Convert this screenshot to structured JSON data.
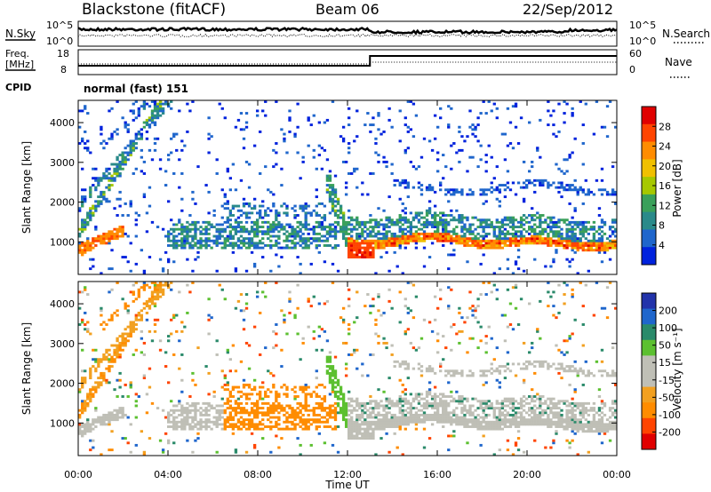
{
  "header": {
    "station": "Blackstone (fitACF)",
    "beam": "Beam 06",
    "date": "22/Sep/2012"
  },
  "summary_panel": {
    "nsky_label": "N.Sky",
    "nsearch_label": "N.Search",
    "freq_label_line1": "Freq.",
    "freq_label_line2": "[MHz]",
    "nave_label": "Nave",
    "cpid_label": "CPID",
    "noise_ticks_left": [
      "10^5",
      "10^0"
    ],
    "noise_ticks_right": [
      "10^5",
      "10^0"
    ],
    "freq_ticks": [
      "18",
      "8"
    ],
    "nave_ticks": [
      "60",
      "0"
    ],
    "cpid_text": "normal (fast) 151"
  },
  "colors": {
    "power_scale": [
      "#0022dd",
      "#1f66cc",
      "#2a8a8a",
      "#3aa05a",
      "#a6c800",
      "#f0c000",
      "#ff8c00",
      "#ff4400",
      "#e00000"
    ],
    "velocity_scale": [
      "#e00000",
      "#ff4400",
      "#ff8c00",
      "#f2a020",
      "#bfbfb6",
      "#bfbfb6",
      "#5cc030",
      "#2a8a6a",
      "#1f66cc",
      "#2233aa"
    ]
  },
  "chart_data": [
    {
      "type": "heatmap",
      "panel": "power",
      "xlabel": "",
      "ylabel": "Slant Range [km]",
      "ylim": [
        180,
        4560
      ],
      "yticks": [
        "1000",
        "2000",
        "3000",
        "4000"
      ],
      "colorbar_label": "Power [dB]",
      "colorbar_ticks": [
        "28",
        "24",
        "20",
        "16",
        "12",
        "8",
        "4"
      ]
    },
    {
      "type": "heatmap",
      "panel": "velocity",
      "xlabel": "Time UT",
      "ylabel": "Slant Range [km]",
      "ylim": [
        180,
        4560
      ],
      "yticks": [
        "1000",
        "2000",
        "3000",
        "4000"
      ],
      "xticks": [
        "00:00",
        "04:00",
        "08:00",
        "12:00",
        "16:00",
        "20:00",
        "00:00"
      ],
      "colorbar_label": "Velocity [m s⁻¹]",
      "colorbar_ticks": [
        "200",
        "100",
        "50",
        "15",
        "-15",
        "-50",
        "-100",
        "-200"
      ]
    }
  ]
}
